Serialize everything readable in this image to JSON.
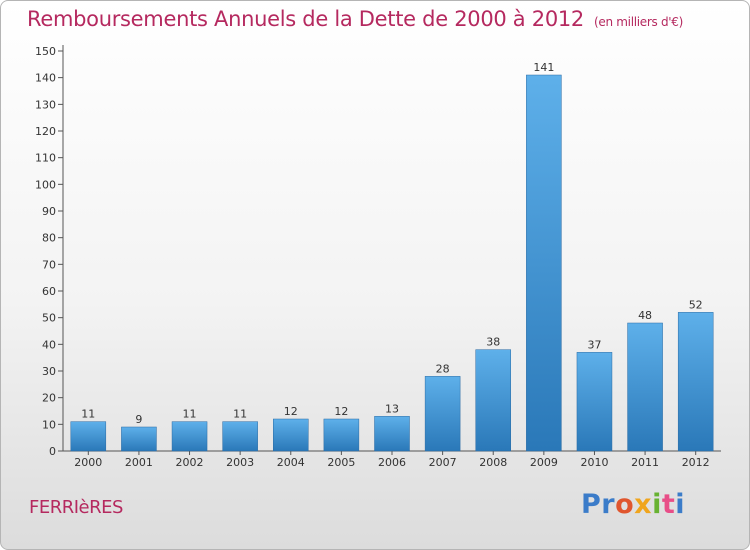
{
  "title": "Remboursements Annuels de la Dette de 2000 à 2012",
  "unit": "(en milliers d'€)",
  "commune": "FERRIèRES",
  "logo": {
    "p1": "Pr",
    "p2": "o",
    "p3": "x",
    "p4": "i",
    "p5": "t",
    "p6": "i"
  },
  "colors": {
    "title": "#b5295f",
    "bar_top": "#5eb0ea",
    "bar_bottom": "#2a78b8"
  },
  "chart_data": {
    "type": "bar",
    "categories": [
      "2000",
      "2001",
      "2002",
      "2003",
      "2004",
      "2005",
      "2006",
      "2007",
      "2008",
      "2009",
      "2010",
      "2011",
      "2012"
    ],
    "values": [
      11,
      9,
      11,
      11,
      12,
      12,
      13,
      28,
      38,
      141,
      37,
      48,
      52
    ],
    "ylim": [
      0,
      150
    ],
    "yticks": [
      0,
      10,
      20,
      30,
      40,
      50,
      60,
      70,
      80,
      90,
      100,
      110,
      120,
      130,
      140,
      150
    ],
    "grid": false,
    "data_labels": true
  }
}
